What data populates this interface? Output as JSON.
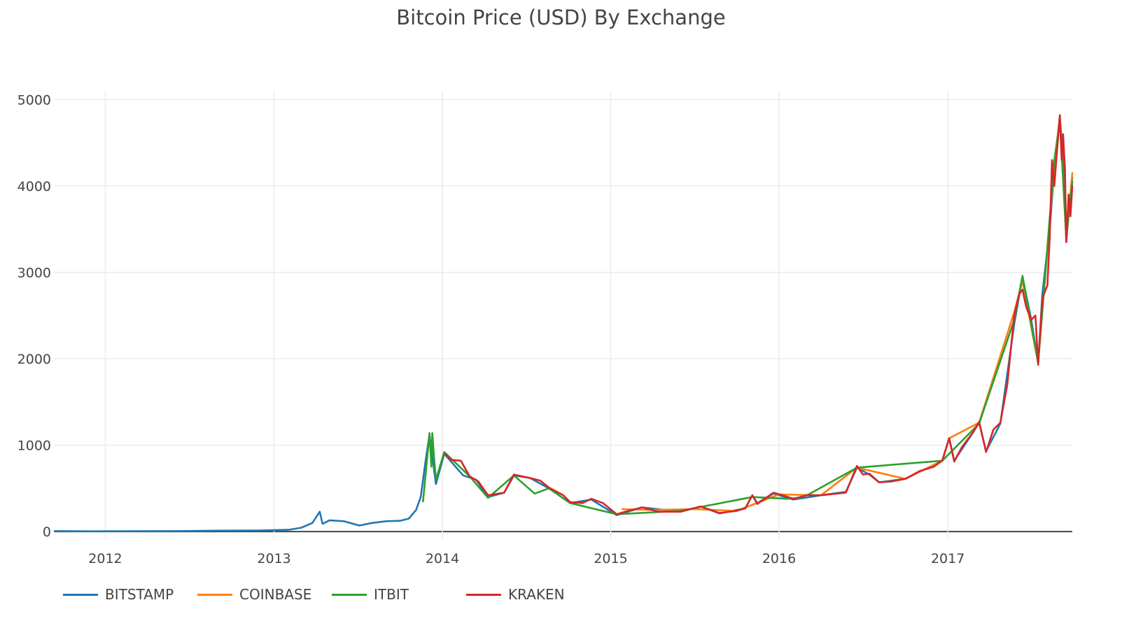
{
  "chart_data": {
    "type": "line",
    "title": "Bitcoin Price (USD) By Exchange",
    "xlabel": "",
    "ylabel": "",
    "x_ticks": [
      "2012",
      "2013",
      "2014",
      "2015",
      "2016",
      "2017"
    ],
    "y_ticks": [
      "0",
      "1000",
      "2000",
      "3000",
      "4000",
      "5000"
    ],
    "xlim": [
      "2011-09-13",
      "2017-09-28"
    ],
    "ylim": [
      -80,
      5100
    ],
    "grid": true,
    "legend_position": "bottom",
    "series": [
      {
        "name": "BITSTAMP",
        "color": "#1f77b4",
        "points": [
          [
            "2011-09-13",
            6
          ],
          [
            "2011-12-01",
            3
          ],
          [
            "2012-03-01",
            5
          ],
          [
            "2012-06-01",
            6
          ],
          [
            "2012-09-01",
            11
          ],
          [
            "2012-12-01",
            13
          ],
          [
            "2013-02-01",
            20
          ],
          [
            "2013-03-01",
            45
          ],
          [
            "2013-03-25",
            100
          ],
          [
            "2013-04-10",
            230
          ],
          [
            "2013-04-16",
            90
          ],
          [
            "2013-05-01",
            130
          ],
          [
            "2013-06-01",
            120
          ],
          [
            "2013-07-05",
            70
          ],
          [
            "2013-08-01",
            100
          ],
          [
            "2013-09-01",
            120
          ],
          [
            "2013-10-01",
            125
          ],
          [
            "2013-10-20",
            150
          ],
          [
            "2013-11-05",
            250
          ],
          [
            "2013-11-15",
            400
          ],
          [
            "2013-11-25",
            800
          ],
          [
            "2013-12-04",
            1120
          ],
          [
            "2013-12-18",
            550
          ],
          [
            "2014-01-05",
            900
          ],
          [
            "2014-02-15",
            650
          ],
          [
            "2014-03-15",
            600
          ],
          [
            "2014-04-10",
            400
          ],
          [
            "2014-05-15",
            450
          ],
          [
            "2014-06-05",
            650
          ],
          [
            "2014-07-10",
            620
          ],
          [
            "2014-08-20",
            500
          ],
          [
            "2014-10-05",
            330
          ],
          [
            "2014-11-20",
            370
          ],
          [
            "2015-01-14",
            190
          ],
          [
            "2015-03-10",
            280
          ],
          [
            "2015-06-01",
            230
          ],
          [
            "2015-07-15",
            290
          ],
          [
            "2015-08-25",
            210
          ],
          [
            "2015-10-20",
            270
          ],
          [
            "2015-11-04",
            420
          ],
          [
            "2015-11-15",
            330
          ],
          [
            "2015-12-20",
            440
          ],
          [
            "2016-02-01",
            370
          ],
          [
            "2016-04-01",
            420
          ],
          [
            "2016-05-25",
            460
          ],
          [
            "2016-06-18",
            740
          ],
          [
            "2016-07-15",
            660
          ],
          [
            "2016-08-05",
            570
          ],
          [
            "2016-10-01",
            610
          ],
          [
            "2016-12-20",
            820
          ],
          [
            "2017-01-04",
            1080
          ],
          [
            "2017-01-15",
            820
          ],
          [
            "2017-02-25",
            1150
          ],
          [
            "2017-03-10",
            1260
          ],
          [
            "2017-03-25",
            930
          ],
          [
            "2017-04-25",
            1250
          ],
          [
            "2017-05-25",
            2400
          ],
          [
            "2017-06-12",
            2950
          ],
          [
            "2017-07-01",
            2450
          ],
          [
            "2017-07-16",
            1950
          ],
          [
            "2017-07-25",
            2750
          ],
          [
            "2017-08-10",
            3500
          ],
          [
            "2017-08-20",
            4200
          ],
          [
            "2017-09-01",
            4800
          ],
          [
            "2017-09-08",
            4300
          ],
          [
            "2017-09-15",
            3350
          ],
          [
            "2017-09-22",
            3800
          ],
          [
            "2017-09-28",
            4100
          ]
        ]
      },
      {
        "name": "COINBASE",
        "color": "#ff7f0e",
        "points": [
          [
            "2015-01-26",
            260
          ],
          [
            "2015-04-01",
            250
          ],
          [
            "2015-07-01",
            260
          ],
          [
            "2015-10-01",
            240
          ],
          [
            "2016-01-01",
            430
          ],
          [
            "2016-04-01",
            420
          ],
          [
            "2016-06-18",
            740
          ],
          [
            "2016-10-01",
            610
          ],
          [
            "2016-12-20",
            820
          ],
          [
            "2017-01-04",
            1080
          ],
          [
            "2017-03-10",
            1260
          ],
          [
            "2017-05-25",
            2540
          ],
          [
            "2017-06-12",
            2900
          ],
          [
            "2017-07-16",
            1950
          ],
          [
            "2017-08-20",
            4250
          ],
          [
            "2017-09-01",
            4800
          ],
          [
            "2017-09-15",
            3380
          ],
          [
            "2017-09-28",
            4150
          ]
        ]
      },
      {
        "name": "ITBIT",
        "color": "#2ca02c",
        "points": [
          [
            "2013-11-20",
            350
          ],
          [
            "2013-11-28",
            800
          ],
          [
            "2013-12-04",
            1140
          ],
          [
            "2013-12-08",
            750
          ],
          [
            "2013-12-10",
            1140
          ],
          [
            "2013-12-14",
            850
          ],
          [
            "2013-12-18",
            600
          ],
          [
            "2014-01-05",
            920
          ],
          [
            "2014-03-01",
            640
          ],
          [
            "2014-04-10",
            390
          ],
          [
            "2014-06-05",
            650
          ],
          [
            "2014-07-20",
            440
          ],
          [
            "2014-08-20",
            500
          ],
          [
            "2014-10-05",
            330
          ],
          [
            "2015-01-14",
            200
          ],
          [
            "2015-06-01",
            240
          ],
          [
            "2015-11-04",
            400
          ],
          [
            "2016-01-20",
            380
          ],
          [
            "2016-02-15",
            390
          ],
          [
            "2016-03-05",
            430
          ],
          [
            "2016-06-18",
            740
          ],
          [
            "2016-12-20",
            820
          ],
          [
            "2017-03-10",
            1250
          ],
          [
            "2017-05-25",
            2450
          ],
          [
            "2017-06-12",
            2960
          ],
          [
            "2017-07-16",
            1950
          ],
          [
            "2017-08-20",
            4300
          ],
          [
            "2017-09-01",
            4750
          ],
          [
            "2017-09-15",
            3400
          ],
          [
            "2017-09-28",
            4050
          ]
        ]
      },
      {
        "name": "KRAKEN",
        "color": "#d62728",
        "points": [
          [
            "2014-01-07",
            900
          ],
          [
            "2014-01-20",
            830
          ],
          [
            "2014-02-10",
            820
          ],
          [
            "2014-03-01",
            640
          ],
          [
            "2014-03-20",
            580
          ],
          [
            "2014-04-10",
            420
          ],
          [
            "2014-05-15",
            450
          ],
          [
            "2014-06-05",
            660
          ],
          [
            "2014-07-10",
            620
          ],
          [
            "2014-08-01",
            590
          ],
          [
            "2014-08-20",
            510
          ],
          [
            "2014-09-20",
            420
          ],
          [
            "2014-10-05",
            340
          ],
          [
            "2014-11-01",
            330
          ],
          [
            "2014-11-20",
            380
          ],
          [
            "2014-12-15",
            330
          ],
          [
            "2015-01-14",
            200
          ],
          [
            "2015-02-01",
            230
          ],
          [
            "2015-03-10",
            280
          ],
          [
            "2015-04-15",
            230
          ],
          [
            "2015-06-01",
            230
          ],
          [
            "2015-07-15",
            290
          ],
          [
            "2015-08-25",
            215
          ],
          [
            "2015-10-01",
            240
          ],
          [
            "2015-10-20",
            270
          ],
          [
            "2015-11-04",
            420
          ],
          [
            "2015-11-15",
            320
          ],
          [
            "2015-12-20",
            450
          ],
          [
            "2016-01-15",
            410
          ],
          [
            "2016-02-01",
            380
          ],
          [
            "2016-03-01",
            420
          ],
          [
            "2016-04-01",
            420
          ],
          [
            "2016-05-25",
            450
          ],
          [
            "2016-06-18",
            760
          ],
          [
            "2016-07-01",
            660
          ],
          [
            "2016-07-15",
            670
          ],
          [
            "2016-08-05",
            570
          ],
          [
            "2016-09-01",
            580
          ],
          [
            "2016-10-01",
            610
          ],
          [
            "2016-11-01",
            700
          ],
          [
            "2016-12-01",
            750
          ],
          [
            "2016-12-20",
            820
          ],
          [
            "2017-01-04",
            1080
          ],
          [
            "2017-01-15",
            810
          ],
          [
            "2017-02-01",
            980
          ],
          [
            "2017-02-25",
            1150
          ],
          [
            "2017-03-10",
            1270
          ],
          [
            "2017-03-25",
            920
          ],
          [
            "2017-04-10",
            1180
          ],
          [
            "2017-04-25",
            1260
          ],
          [
            "2017-05-10",
            1700
          ],
          [
            "2017-05-25",
            2500
          ],
          [
            "2017-06-05",
            2750
          ],
          [
            "2017-06-12",
            2800
          ],
          [
            "2017-06-20",
            2600
          ],
          [
            "2017-07-01",
            2450
          ],
          [
            "2017-07-10",
            2500
          ],
          [
            "2017-07-16",
            1930
          ],
          [
            "2017-07-25",
            2700
          ],
          [
            "2017-08-05",
            2850
          ],
          [
            "2017-08-10",
            3400
          ],
          [
            "2017-08-15",
            4300
          ],
          [
            "2017-08-20",
            4000
          ],
          [
            "2017-08-25",
            4350
          ],
          [
            "2017-09-01",
            4820
          ],
          [
            "2017-09-05",
            4300
          ],
          [
            "2017-09-08",
            4600
          ],
          [
            "2017-09-12",
            4200
          ],
          [
            "2017-09-15",
            3350
          ],
          [
            "2017-09-20",
            3900
          ],
          [
            "2017-09-24",
            3650
          ],
          [
            "2017-09-28",
            4000
          ]
        ]
      }
    ]
  }
}
